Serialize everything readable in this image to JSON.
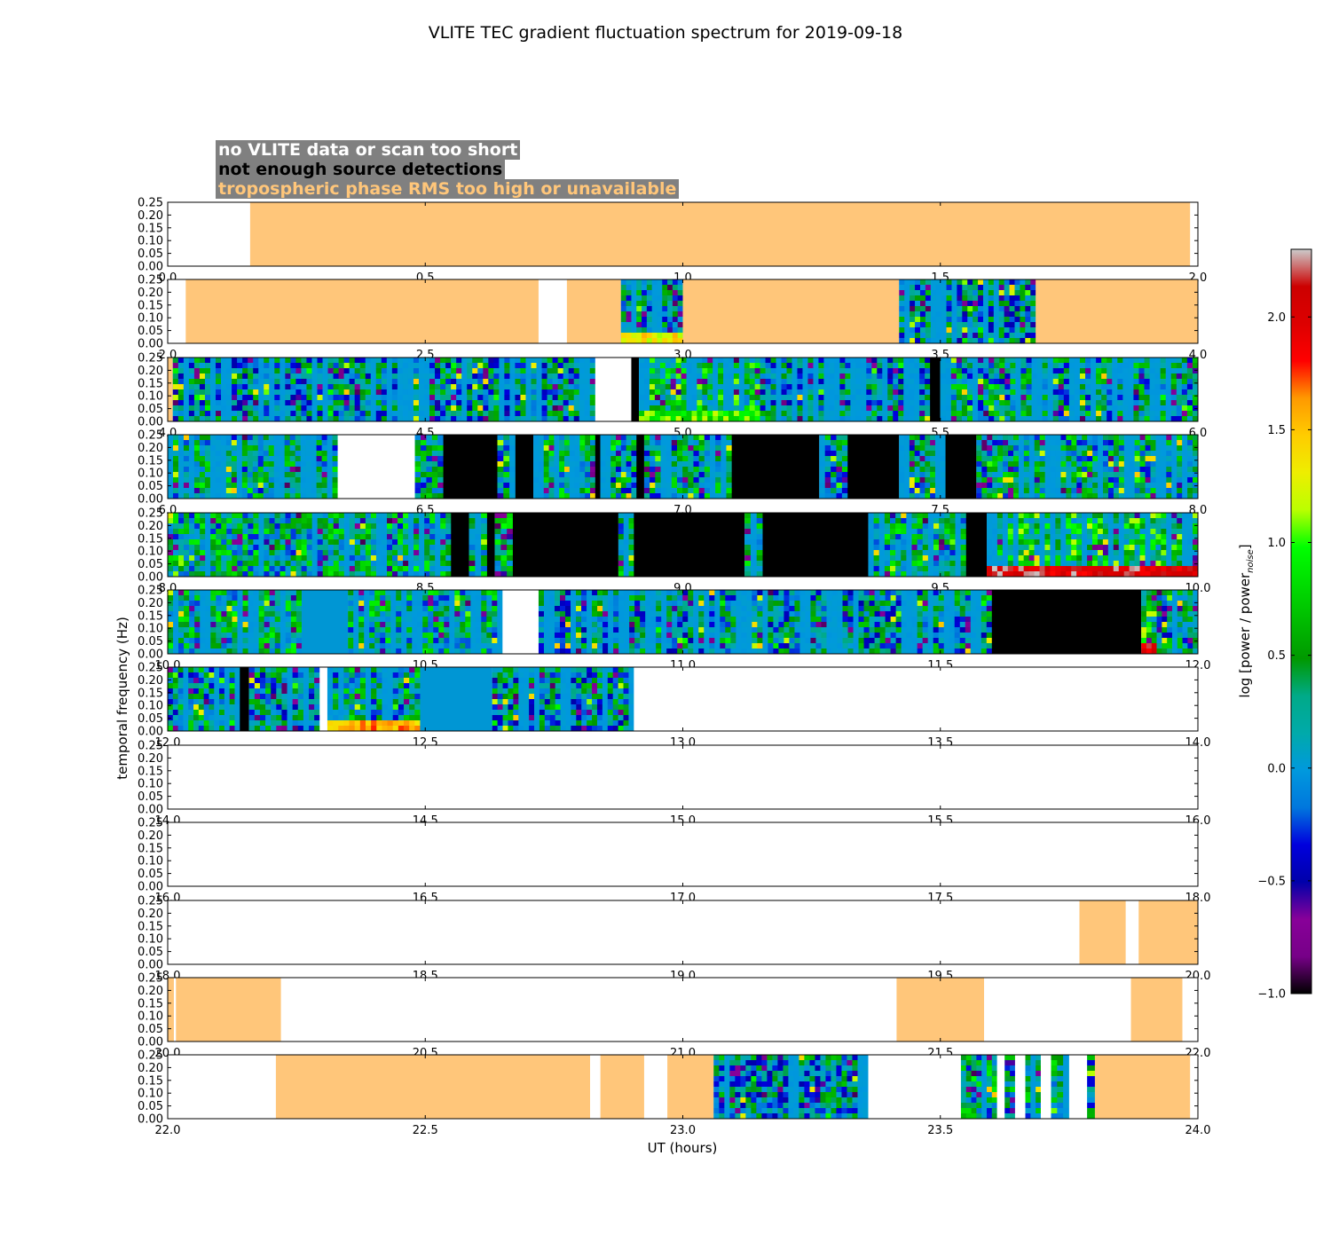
{
  "chart_data": {
    "type": "heatmap",
    "title": "VLITE TEC gradient fluctuation spectrum for 2019-09-18",
    "xlabel": "UT (hours)",
    "ylabel": "temporal frequency (Hz)",
    "ylim": [
      0.0,
      0.25
    ],
    "yticks": [
      "0.00",
      "0.05",
      "0.10",
      "0.15",
      "0.20",
      "0.25"
    ],
    "legend": [
      {
        "label": "no VLITE data or scan too short",
        "color": "#ffffff"
      },
      {
        "label": "not enough source detections",
        "color": "#000000"
      },
      {
        "label": "tropospheric phase RMS too high or unavailable",
        "color": "#ffc67a"
      }
    ],
    "colorbar": {
      "label": "log [power / power",
      "label_sub": "noise",
      "label_end": "]",
      "range": [
        -1.0,
        2.3
      ],
      "ticks": [
        "−1.0",
        "−0.5",
        "0.0",
        "0.5",
        "1.0",
        "1.5",
        "2.0"
      ],
      "tick_values": [
        -1.0,
        -0.5,
        0.0,
        0.5,
        1.0,
        1.5,
        2.0
      ],
      "colormap": "nipy_spectral"
    },
    "colors": {
      "nodata": "#ffffff",
      "nodetect": "#000000",
      "tropo": "#ffc67a",
      "quiet": "#0096d4"
    },
    "panels": [
      {
        "xrange": [
          0.0,
          2.0
        ],
        "xticks": [
          "0.0",
          "0.5",
          "1.0",
          "1.5",
          "2.0"
        ],
        "segments": [
          {
            "s": 0.0,
            "e": 0.16,
            "t": "nodata"
          },
          {
            "s": 0.16,
            "e": 1.985,
            "t": "tropo"
          },
          {
            "s": 1.985,
            "e": 2.0,
            "t": "nodata"
          }
        ]
      },
      {
        "xrange": [
          2.0,
          4.0
        ],
        "xticks": [
          "2.0",
          "2.5",
          "3.0",
          "3.5",
          "4.0"
        ],
        "segments": [
          {
            "s": 2.0,
            "e": 2.035,
            "t": "nodata"
          },
          {
            "s": 2.035,
            "e": 2.72,
            "t": "tropo"
          },
          {
            "s": 2.72,
            "e": 2.775,
            "t": "nodata"
          },
          {
            "s": 2.775,
            "e": 2.88,
            "t": "tropo"
          },
          {
            "s": 2.88,
            "e": 3.0,
            "t": "data",
            "lvl": 0.15,
            "low": 1.6
          },
          {
            "s": 3.0,
            "e": 3.42,
            "t": "tropo"
          },
          {
            "s": 3.42,
            "e": 3.685,
            "t": "data",
            "lvl": 0.05
          },
          {
            "s": 3.685,
            "e": 4.0,
            "t": "tropo"
          }
        ]
      },
      {
        "xrange": [
          4.0,
          6.0
        ],
        "xticks": [
          "4.0",
          "4.5",
          "5.0",
          "5.5",
          "6.0"
        ],
        "segments": [
          {
            "s": 4.0,
            "e": 4.01,
            "t": "tropo"
          },
          {
            "s": 4.01,
            "e": 4.83,
            "t": "data",
            "lvl": 0.08
          },
          {
            "s": 4.83,
            "e": 4.9,
            "t": "nodata"
          },
          {
            "s": 4.9,
            "e": 4.915,
            "t": "nodetect"
          },
          {
            "s": 4.915,
            "e": 5.15,
            "t": "data",
            "lvl": 0.5,
            "low": 1.2
          },
          {
            "s": 5.15,
            "e": 5.48,
            "t": "data",
            "lvl": 0.1
          },
          {
            "s": 5.48,
            "e": 5.5,
            "t": "nodetect"
          },
          {
            "s": 5.5,
            "e": 6.0,
            "t": "data",
            "lvl": 0.2
          }
        ]
      },
      {
        "xrange": [
          6.0,
          8.0
        ],
        "xticks": [
          "6.0",
          "6.5",
          "7.0",
          "7.5",
          "8.0"
        ],
        "segments": [
          {
            "s": 6.0,
            "e": 6.33,
            "t": "data",
            "lvl": 0.25
          },
          {
            "s": 6.33,
            "e": 6.48,
            "t": "nodata"
          },
          {
            "s": 6.48,
            "e": 6.535,
            "t": "data",
            "lvl": 0.25
          },
          {
            "s": 6.535,
            "e": 6.64,
            "t": "nodetect"
          },
          {
            "s": 6.64,
            "e": 6.675,
            "t": "data",
            "lvl": 0.25
          },
          {
            "s": 6.675,
            "e": 6.71,
            "t": "nodetect"
          },
          {
            "s": 6.71,
            "e": 6.83,
            "t": "data",
            "lvl": 0.3
          },
          {
            "s": 6.83,
            "e": 6.84,
            "t": "nodetect"
          },
          {
            "s": 6.84,
            "e": 6.91,
            "t": "data",
            "lvl": 0.2
          },
          {
            "s": 6.91,
            "e": 6.925,
            "t": "nodetect"
          },
          {
            "s": 6.925,
            "e": 7.095,
            "t": "data",
            "lvl": 0.25
          },
          {
            "s": 7.095,
            "e": 7.265,
            "t": "nodetect"
          },
          {
            "s": 7.265,
            "e": 7.32,
            "t": "data",
            "lvl": 0.2
          },
          {
            "s": 7.32,
            "e": 7.42,
            "t": "nodetect"
          },
          {
            "s": 7.42,
            "e": 7.51,
            "t": "data",
            "lvl": 0.2
          },
          {
            "s": 7.51,
            "e": 7.57,
            "t": "nodetect"
          },
          {
            "s": 7.57,
            "e": 8.0,
            "t": "data",
            "lvl": 0.25
          }
        ]
      },
      {
        "xrange": [
          8.0,
          10.0
        ],
        "xticks": [
          "8.0",
          "8.5",
          "9.0",
          "9.5",
          "10.0"
        ],
        "segments": [
          {
            "s": 8.0,
            "e": 8.55,
            "t": "data",
            "lvl": 0.3
          },
          {
            "s": 8.55,
            "e": 8.585,
            "t": "nodetect"
          },
          {
            "s": 8.585,
            "e": 8.62,
            "t": "data",
            "lvl": 0.3
          },
          {
            "s": 8.62,
            "e": 8.635,
            "t": "nodetect"
          },
          {
            "s": 8.635,
            "e": 8.67,
            "t": "data",
            "lvl": 0.4
          },
          {
            "s": 8.67,
            "e": 8.875,
            "t": "nodetect"
          },
          {
            "s": 8.875,
            "e": 8.905,
            "t": "data",
            "lvl": 0.3
          },
          {
            "s": 8.905,
            "e": 9.12,
            "t": "nodetect"
          },
          {
            "s": 9.12,
            "e": 9.155,
            "t": "data",
            "lvl": 0.4
          },
          {
            "s": 9.155,
            "e": 9.36,
            "t": "nodetect"
          },
          {
            "s": 9.36,
            "e": 9.55,
            "t": "data",
            "lvl": 0.3
          },
          {
            "s": 9.55,
            "e": 9.59,
            "t": "nodetect"
          },
          {
            "s": 9.59,
            "e": 10.0,
            "t": "data",
            "lvl": 0.55,
            "low": 2.3
          }
        ]
      },
      {
        "xrange": [
          10.0,
          12.0
        ],
        "xticks": [
          "10.0",
          "10.5",
          "11.0",
          "11.5",
          "12.0"
        ],
        "segments": [
          {
            "s": 10.0,
            "e": 10.26,
            "t": "data",
            "lvl": 0.35
          },
          {
            "s": 10.26,
            "e": 10.35,
            "t": "data",
            "lvl": 0.0,
            "quiet": true
          },
          {
            "s": 10.35,
            "e": 10.65,
            "t": "data",
            "lvl": 0.3
          },
          {
            "s": 10.65,
            "e": 10.72,
            "t": "nodata"
          },
          {
            "s": 10.72,
            "e": 11.6,
            "t": "data",
            "lvl": 0.1
          },
          {
            "s": 11.6,
            "e": 11.89,
            "t": "nodetect"
          },
          {
            "s": 11.89,
            "e": 11.92,
            "t": "data",
            "lvl": 0.6,
            "low": 2.3
          },
          {
            "s": 11.92,
            "e": 12.0,
            "t": "data",
            "lvl": 0.15
          }
        ]
      },
      {
        "xrange": [
          12.0,
          14.0
        ],
        "xticks": [
          "12.0",
          "12.5",
          "13.0",
          "13.5",
          "14.0"
        ],
        "segments": [
          {
            "s": 12.0,
            "e": 12.14,
            "t": "data",
            "lvl": 0.2
          },
          {
            "s": 12.14,
            "e": 12.158,
            "t": "nodetect"
          },
          {
            "s": 12.158,
            "e": 12.295,
            "t": "data",
            "lvl": 0.15
          },
          {
            "s": 12.295,
            "e": 12.31,
            "t": "nodata"
          },
          {
            "s": 12.31,
            "e": 12.49,
            "t": "data",
            "lvl": 0.25,
            "low": 1.8
          },
          {
            "s": 12.49,
            "e": 12.63,
            "t": "data",
            "lvl": 0.0,
            "quiet": true
          },
          {
            "s": 12.63,
            "e": 12.905,
            "t": "data",
            "lvl": 0.1
          },
          {
            "s": 12.905,
            "e": 14.0,
            "t": "nodata"
          }
        ]
      },
      {
        "xrange": [
          14.0,
          16.0
        ],
        "xticks": [
          "14.0",
          "14.5",
          "15.0",
          "15.5",
          "16.0"
        ],
        "segments": [
          {
            "s": 14.0,
            "e": 16.0,
            "t": "nodata"
          }
        ]
      },
      {
        "xrange": [
          16.0,
          18.0
        ],
        "xticks": [
          "16.0",
          "16.5",
          "17.0",
          "17.5",
          "18.0"
        ],
        "segments": [
          {
            "s": 16.0,
            "e": 18.0,
            "t": "nodata"
          }
        ]
      },
      {
        "xrange": [
          18.0,
          20.0
        ],
        "xticks": [
          "18.0",
          "18.5",
          "19.0",
          "19.5",
          "20.0"
        ],
        "segments": [
          {
            "s": 18.0,
            "e": 19.77,
            "t": "nodata"
          },
          {
            "s": 19.77,
            "e": 19.86,
            "t": "tropo"
          },
          {
            "s": 19.86,
            "e": 19.885,
            "t": "nodata"
          },
          {
            "s": 19.885,
            "e": 20.0,
            "t": "tropo"
          }
        ]
      },
      {
        "xrange": [
          20.0,
          22.0
        ],
        "xticks": [
          "20.0",
          "20.5",
          "21.0",
          "21.5",
          "22.0"
        ],
        "segments": [
          {
            "s": 20.0,
            "e": 20.012,
            "t": "tropo"
          },
          {
            "s": 20.012,
            "e": 20.016,
            "t": "nodata"
          },
          {
            "s": 20.016,
            "e": 20.22,
            "t": "tropo"
          },
          {
            "s": 20.22,
            "e": 21.415,
            "t": "nodata"
          },
          {
            "s": 21.415,
            "e": 21.585,
            "t": "tropo"
          },
          {
            "s": 21.585,
            "e": 21.87,
            "t": "nodata"
          },
          {
            "s": 21.87,
            "e": 21.97,
            "t": "tropo"
          },
          {
            "s": 21.97,
            "e": 22.0,
            "t": "nodata"
          }
        ]
      },
      {
        "xrange": [
          22.0,
          24.0
        ],
        "xticks": [
          "22.0",
          "22.5",
          "23.0",
          "23.5",
          "24.0"
        ],
        "segments": [
          {
            "s": 22.0,
            "e": 22.21,
            "t": "nodata"
          },
          {
            "s": 22.21,
            "e": 22.82,
            "t": "tropo"
          },
          {
            "s": 22.82,
            "e": 22.84,
            "t": "nodata"
          },
          {
            "s": 22.84,
            "e": 22.925,
            "t": "tropo"
          },
          {
            "s": 22.925,
            "e": 22.97,
            "t": "nodata"
          },
          {
            "s": 22.97,
            "e": 23.06,
            "t": "tropo"
          },
          {
            "s": 23.06,
            "e": 23.36,
            "t": "data",
            "lvl": 0.1
          },
          {
            "s": 23.36,
            "e": 23.54,
            "t": "nodata"
          },
          {
            "s": 23.54,
            "e": 23.61,
            "t": "data",
            "lvl": 0.3
          },
          {
            "s": 23.61,
            "e": 23.625,
            "t": "nodata"
          },
          {
            "s": 23.625,
            "e": 23.645,
            "t": "data",
            "lvl": 0.25
          },
          {
            "s": 23.645,
            "e": 23.665,
            "t": "nodata"
          },
          {
            "s": 23.665,
            "e": 23.695,
            "t": "data",
            "lvl": 0.25
          },
          {
            "s": 23.695,
            "e": 23.715,
            "t": "nodata"
          },
          {
            "s": 23.715,
            "e": 23.75,
            "t": "data",
            "lvl": 0.25
          },
          {
            "s": 23.75,
            "e": 23.785,
            "t": "nodata"
          },
          {
            "s": 23.785,
            "e": 23.8,
            "t": "data",
            "lvl": 0.1
          },
          {
            "s": 23.8,
            "e": 23.985,
            "t": "tropo"
          },
          {
            "s": 23.985,
            "e": 24.0,
            "t": "nodata"
          }
        ]
      }
    ]
  }
}
